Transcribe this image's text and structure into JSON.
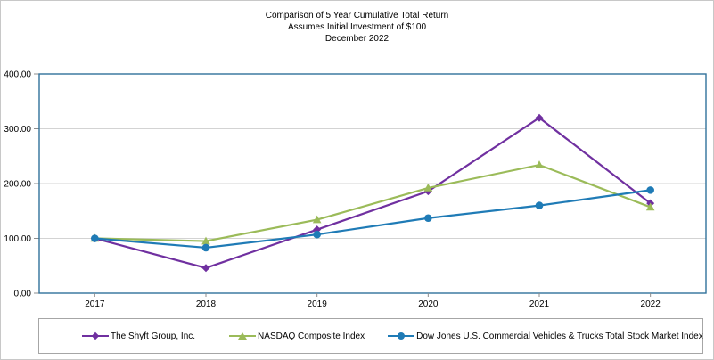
{
  "title": {
    "line1": "Comparison of 5 Year Cumulative Total Return",
    "line2": "Assumes Initial Investment of $100",
    "line3": "December 2022"
  },
  "chart_data": {
    "type": "line",
    "categories": [
      "2017",
      "2018",
      "2019",
      "2020",
      "2021",
      "2022"
    ],
    "series": [
      {
        "name": "The Shyft Group, Inc.",
        "color": "#7030a0",
        "marker": "diamond",
        "values": [
          100,
          46,
          116,
          186,
          320,
          164
        ]
      },
      {
        "name": "NASDAQ Composite Index",
        "color": "#9bbb59",
        "marker": "triangle",
        "values": [
          100,
          95,
          134,
          192,
          234,
          157
        ]
      },
      {
        "name": "Dow Jones U.S. Commercial Vehicles & Trucks Total Stock Market Index",
        "color": "#1f7bb6",
        "marker": "circle",
        "values": [
          100,
          83,
          107,
          137,
          160,
          188
        ]
      }
    ],
    "ylim": [
      0,
      400
    ],
    "y_tick_labels": [
      "400.00",
      "300.00",
      "200.00",
      "100.00",
      "0.00"
    ],
    "y_tick_values": [
      400,
      300,
      200,
      100,
      0
    ],
    "grid": true,
    "legend_position": "bottom",
    "colors": {
      "plot_border": "#31719b",
      "gridline": "#d3d3d3",
      "tick": "#8c8c8c",
      "text": "#000000",
      "legend_border": "#a6a6a6"
    }
  }
}
